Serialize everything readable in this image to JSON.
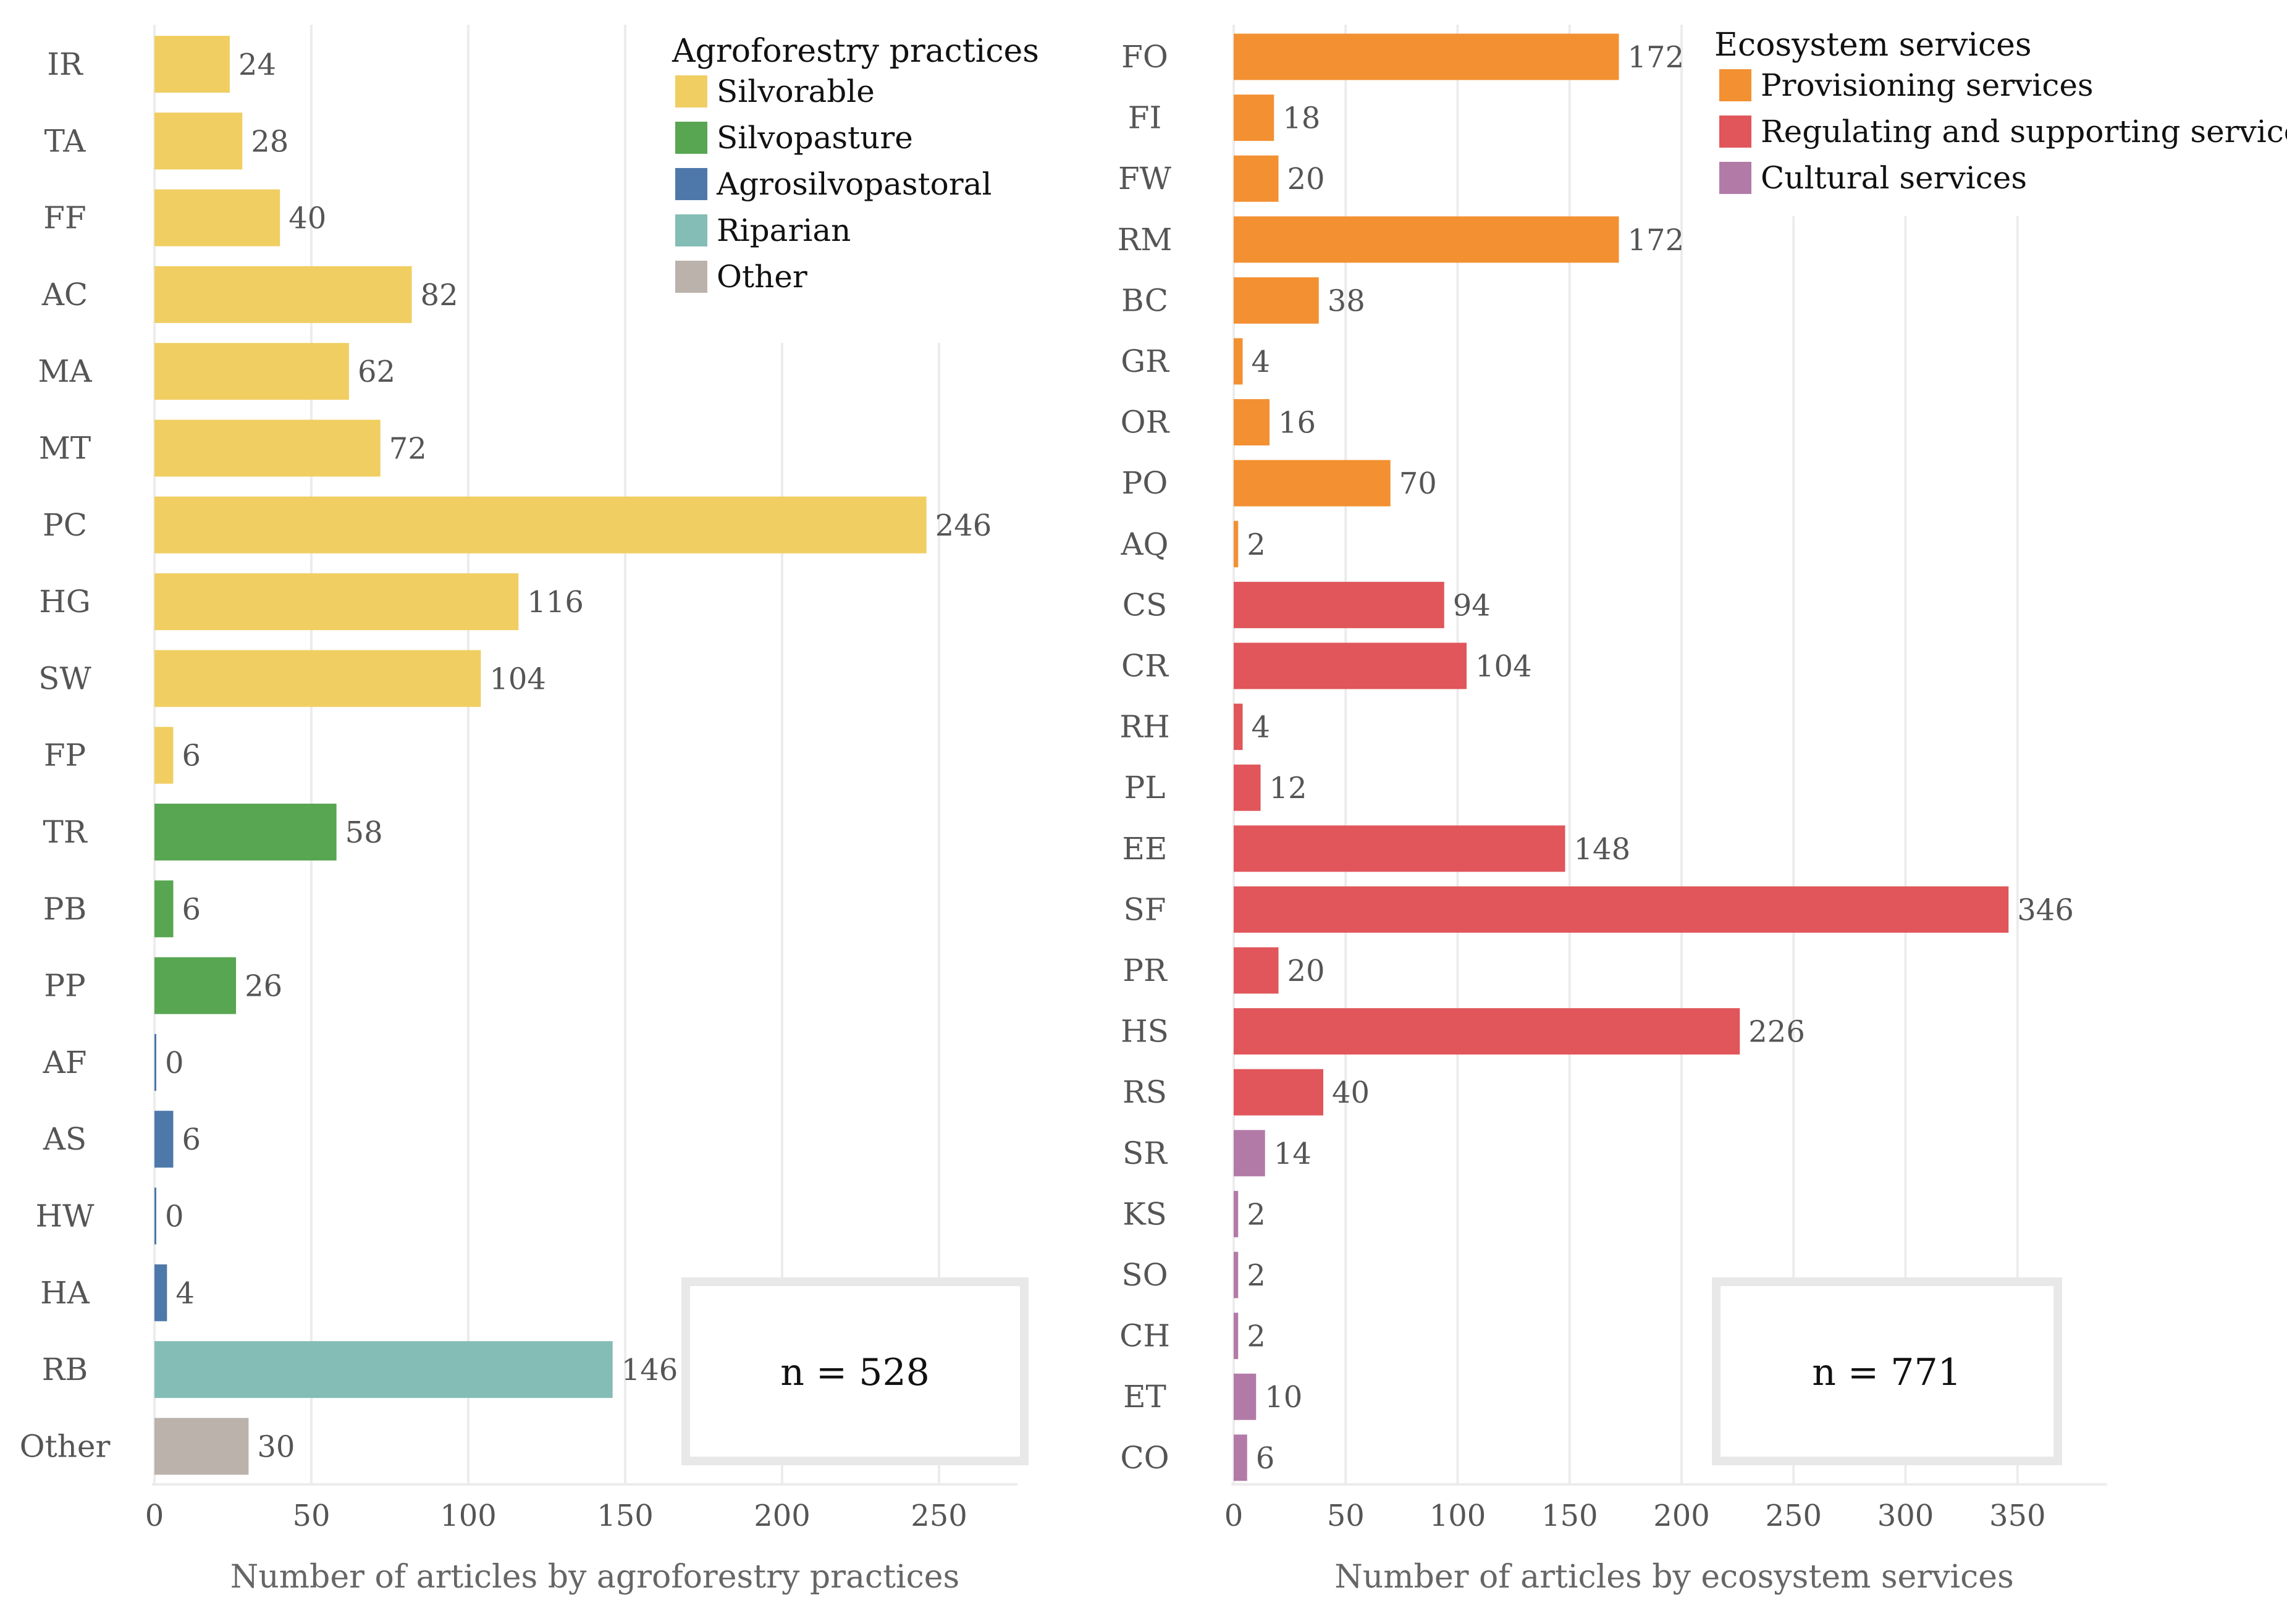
{
  "colors": {
    "Silvorable": "#F0CE62",
    "Silvopasture": "#58A552",
    "Agrosilvopastoral": "#4E78A9",
    "Riparian": "#84BDB5",
    "Other": "#BBB2AC",
    "Provisioning services": "#F39032",
    "Regulating and supporting services": "#E0565A",
    "Cultural services": "#B27BA7"
  },
  "chart_data": [
    {
      "type": "bar",
      "orientation": "horizontal",
      "title": "",
      "xlabel": "Number of articles by agroforestry practices",
      "ylabel": "",
      "xlim": [
        0,
        275
      ],
      "ticks": [
        0,
        50,
        100,
        150,
        200,
        250
      ],
      "legend_title": "Agroforestry practices",
      "legend": [
        "Silvorable",
        "Silvopasture",
        "Agrosilvopastoral",
        "Riparian",
        "Other"
      ],
      "legend_position": "top-right",
      "n_text": "n = 528",
      "categories": [
        "IR",
        "TA",
        "FF",
        "AC",
        "MA",
        "MT",
        "PC",
        "HG",
        "SW",
        "FP",
        "TR",
        "PB",
        "PP",
        "AF",
        "AS",
        "HW",
        "HA",
        "RB",
        "Other"
      ],
      "values": [
        24,
        28,
        40,
        82,
        62,
        72,
        246,
        116,
        104,
        6,
        58,
        6,
        26,
        0,
        6,
        0,
        4,
        146,
        30
      ],
      "groups": [
        "Silvorable",
        "Silvorable",
        "Silvorable",
        "Silvorable",
        "Silvorable",
        "Silvorable",
        "Silvorable",
        "Silvorable",
        "Silvorable",
        "Silvorable",
        "Silvopasture",
        "Silvopasture",
        "Silvopasture",
        "Agrosilvopastoral",
        "Agrosilvopastoral",
        "Agrosilvopastoral",
        "Agrosilvopastoral",
        "Riparian",
        "Other"
      ],
      "value_labels": [
        "24",
        "28",
        "40",
        "82",
        "62",
        "72",
        "246",
        "116",
        "104",
        "6",
        "58",
        "6",
        "26",
        "0",
        "6",
        "0",
        "4",
        "146",
        "30"
      ],
      "tick_labels": [
        "0",
        "50",
        "100",
        "150",
        "200",
        "250"
      ]
    },
    {
      "type": "bar",
      "orientation": "horizontal",
      "title": "",
      "xlabel": "Number of articles by ecosystem services",
      "ylabel": "",
      "xlim": [
        0,
        390
      ],
      "ticks": [
        0,
        50,
        100,
        150,
        200,
        250,
        300,
        350
      ],
      "legend_title": "Ecosystem services",
      "legend": [
        "Provisioning services",
        "Regulating and supporting services",
        "Cultural services"
      ],
      "legend_position": "top-right",
      "n_text": "n = 771",
      "categories": [
        "FO",
        "FI",
        "FW",
        "RM",
        "BC",
        "GR",
        "OR",
        "PO",
        "AQ",
        "CS",
        "CR",
        "RH",
        "PL",
        "EE",
        "SF",
        "PR",
        "HS",
        "RS",
        "SR",
        "KS",
        "SO",
        "CH",
        "ET",
        "CO"
      ],
      "values": [
        172,
        18,
        20,
        172,
        38,
        4,
        16,
        70,
        2,
        94,
        104,
        4,
        12,
        148,
        346,
        20,
        226,
        40,
        14,
        2,
        2,
        2,
        10,
        6
      ],
      "groups": [
        "Provisioning services",
        "Provisioning services",
        "Provisioning services",
        "Provisioning services",
        "Provisioning services",
        "Provisioning services",
        "Provisioning services",
        "Provisioning services",
        "Provisioning services",
        "Regulating and supporting services",
        "Regulating and supporting services",
        "Regulating and supporting services",
        "Regulating and supporting services",
        "Regulating and supporting services",
        "Regulating and supporting services",
        "Regulating and supporting services",
        "Regulating and supporting services",
        "Regulating and supporting services",
        "Cultural services",
        "Cultural services",
        "Cultural services",
        "Cultural services",
        "Cultural services",
        "Cultural services"
      ],
      "value_labels": [
        "172",
        "18",
        "20",
        "172",
        "38",
        "4",
        "16",
        "70",
        "2",
        "94",
        "104",
        "4",
        "12",
        "148",
        "346",
        "20",
        "226",
        "40",
        "14",
        "2",
        "2",
        "2",
        "10",
        "6"
      ],
      "tick_labels": [
        "0",
        "50",
        "100",
        "150",
        "200",
        "250",
        "300",
        "350"
      ]
    }
  ]
}
